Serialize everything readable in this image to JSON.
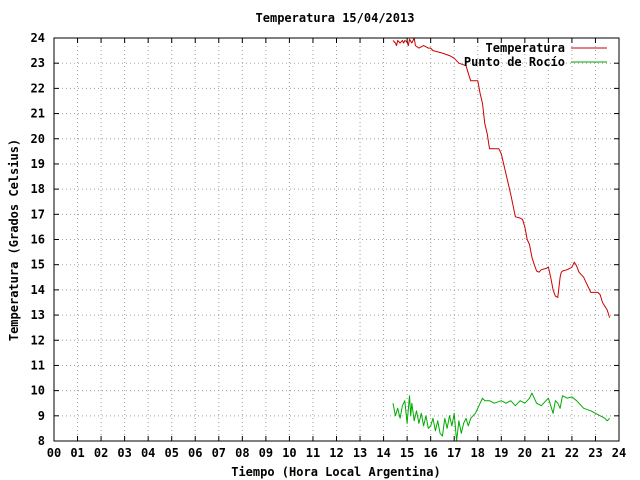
{
  "chart_data": {
    "type": "line",
    "title": "Temperatura 15/04/2013",
    "xlabel": "Tiempo (Hora Local Argentina)",
    "ylabel": "Temperatura (Grados Celsius)",
    "xlim": [
      0,
      24
    ],
    "ylim": [
      8,
      24
    ],
    "grid": true,
    "legend_position": "top-right",
    "x_tick_labels": [
      "00",
      "01",
      "02",
      "03",
      "04",
      "05",
      "06",
      "07",
      "08",
      "09",
      "10",
      "11",
      "12",
      "13",
      "14",
      "15",
      "16",
      "17",
      "18",
      "19",
      "20",
      "21",
      "22",
      "23",
      "24"
    ],
    "y_tick_labels": [
      "8",
      "9",
      "10",
      "11",
      "12",
      "13",
      "14",
      "15",
      "16",
      "17",
      "18",
      "19",
      "20",
      "21",
      "22",
      "23",
      "24"
    ],
    "series": [
      {
        "name": "Temperatura",
        "color": "#cc0000",
        "x": [
          14.4,
          14.5,
          14.55,
          14.6,
          14.7,
          14.75,
          14.8,
          14.85,
          14.9,
          15.0,
          15.05,
          15.1,
          15.2,
          15.3,
          15.35,
          15.5,
          15.7,
          15.9,
          16.0,
          16.1,
          16.5,
          16.8,
          17.0,
          17.2,
          17.5,
          17.6,
          17.7,
          17.75,
          17.8,
          18.0,
          18.1,
          18.2,
          18.3,
          18.4,
          18.5,
          18.7,
          18.9,
          19.0,
          19.2,
          19.4,
          19.6,
          19.8,
          19.9,
          20.0,
          20.1,
          20.2,
          20.3,
          20.4,
          20.5,
          20.6,
          20.7,
          20.9,
          21.0,
          21.1,
          21.2,
          21.3,
          21.4,
          21.5,
          21.55,
          21.6,
          21.8,
          21.9,
          22.0,
          22.1,
          22.2,
          22.3,
          22.5,
          22.6,
          22.8,
          23.0,
          23.1,
          23.2,
          23.3,
          23.5,
          23.6
        ],
        "y": [
          23.9,
          23.8,
          23.7,
          23.9,
          23.8,
          23.85,
          23.9,
          23.8,
          23.9,
          23.85,
          23.7,
          23.95,
          23.8,
          24.0,
          23.7,
          23.6,
          23.7,
          23.6,
          23.6,
          23.5,
          23.4,
          23.3,
          23.2,
          23.0,
          22.9,
          22.6,
          22.3,
          22.3,
          22.3,
          22.3,
          21.8,
          21.4,
          20.6,
          20.2,
          19.6,
          19.6,
          19.6,
          19.4,
          18.6,
          17.8,
          16.9,
          16.85,
          16.8,
          16.5,
          16.0,
          15.8,
          15.3,
          15.0,
          14.75,
          14.7,
          14.8,
          14.85,
          14.9,
          14.5,
          14.0,
          13.75,
          13.7,
          14.5,
          14.7,
          14.75,
          14.8,
          14.85,
          14.9,
          15.1,
          14.95,
          14.7,
          14.5,
          14.3,
          13.9,
          13.9,
          13.9,
          13.8,
          13.5,
          13.2,
          12.9
        ]
      },
      {
        "name": "Punto de Rocío",
        "color": "#00aa00",
        "x": [
          14.4,
          14.5,
          14.6,
          14.7,
          14.8,
          14.9,
          15.0,
          15.1,
          15.15,
          15.2,
          15.3,
          15.4,
          15.5,
          15.6,
          15.7,
          15.8,
          15.9,
          16.0,
          16.1,
          16.2,
          16.3,
          16.4,
          16.5,
          16.6,
          16.7,
          16.8,
          16.9,
          17.0,
          17.1,
          17.2,
          17.3,
          17.4,
          17.5,
          17.6,
          17.7,
          17.8,
          17.9,
          18.0,
          18.1,
          18.2,
          18.3,
          18.5,
          18.7,
          19.0,
          19.2,
          19.4,
          19.6,
          19.8,
          20.0,
          20.1,
          20.2,
          20.3,
          20.5,
          20.7,
          20.9,
          21.0,
          21.2,
          21.3,
          21.4,
          21.5,
          21.6,
          21.8,
          22.0,
          22.2,
          22.5,
          22.8,
          23.0,
          23.2,
          23.4,
          23.5,
          23.6
        ],
        "y": [
          9.5,
          9.0,
          9.3,
          8.9,
          9.4,
          9.6,
          8.7,
          9.8,
          9.0,
          9.5,
          8.8,
          9.2,
          8.7,
          9.1,
          8.6,
          9.0,
          8.5,
          8.6,
          8.9,
          8.4,
          8.8,
          8.3,
          8.2,
          8.9,
          8.5,
          9.0,
          8.6,
          9.1,
          8.0,
          8.8,
          8.3,
          8.7,
          8.9,
          8.6,
          8.9,
          9.0,
          9.1,
          9.3,
          9.5,
          9.7,
          9.6,
          9.6,
          9.5,
          9.6,
          9.5,
          9.6,
          9.4,
          9.6,
          9.5,
          9.6,
          9.7,
          9.9,
          9.5,
          9.4,
          9.6,
          9.7,
          9.1,
          9.6,
          9.5,
          9.3,
          9.8,
          9.7,
          9.75,
          9.6,
          9.3,
          9.2,
          9.1,
          9.0,
          8.9,
          8.8,
          8.9
        ]
      }
    ]
  }
}
